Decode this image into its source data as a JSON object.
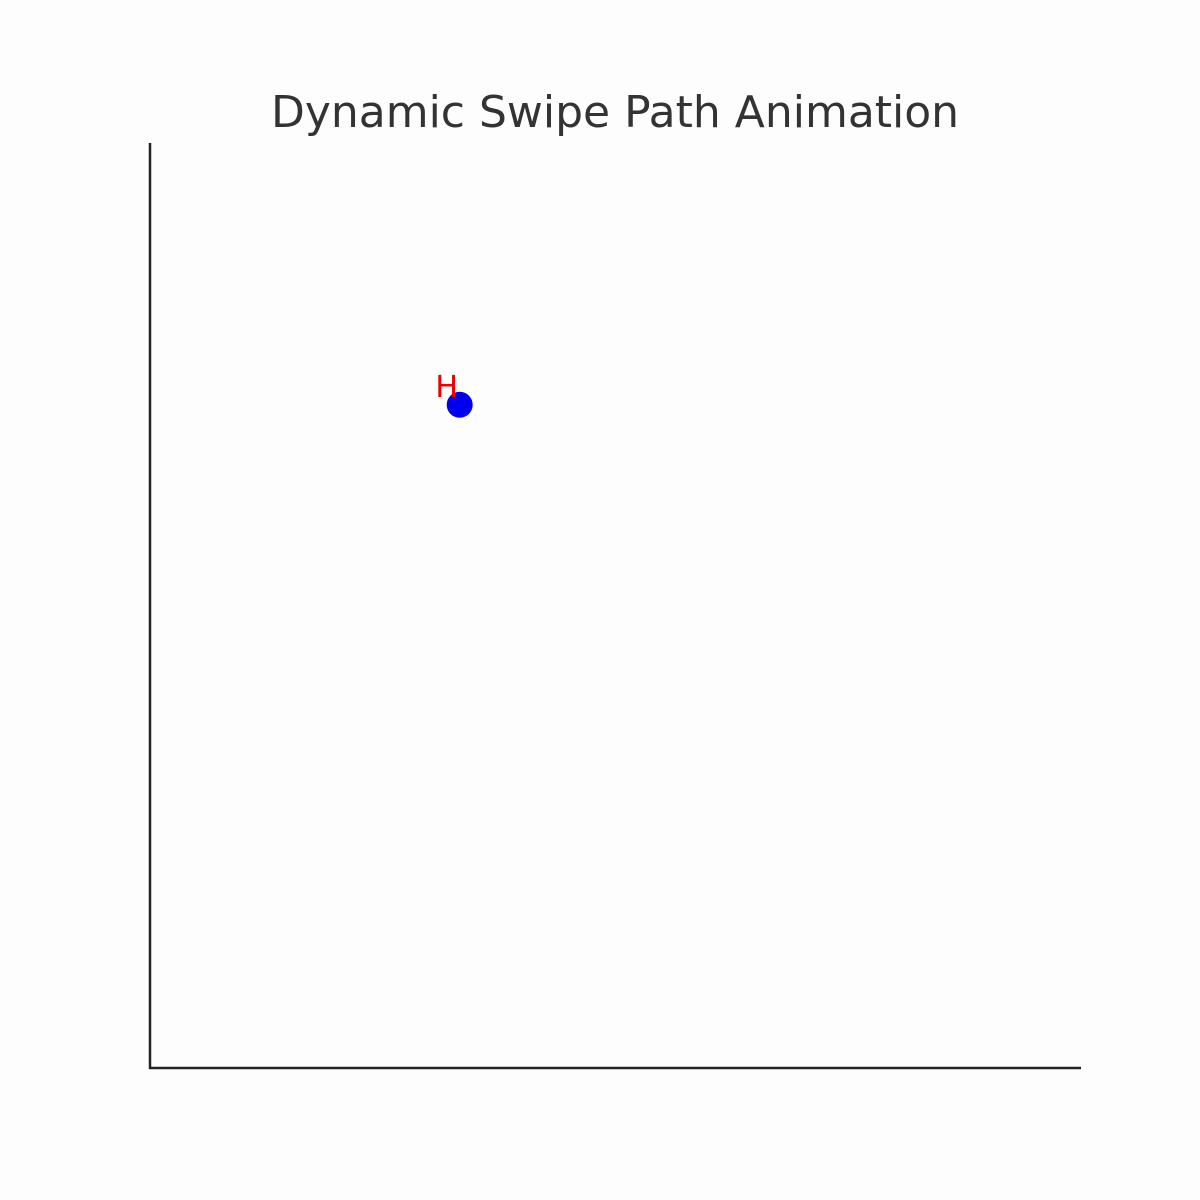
{
  "chart_data": {
    "type": "scatter",
    "title": "Dynamic Swipe Path Animation",
    "xlabel": "",
    "ylabel": "",
    "xlim": [
      0,
      10
    ],
    "ylim": [
      0,
      10
    ],
    "grid": false,
    "axes_visible": [
      "left",
      "bottom"
    ],
    "series": [
      {
        "points": [
          {
            "x": 3.33,
            "y": 7.17,
            "label": "H"
          }
        ]
      }
    ]
  },
  "colors": {
    "background": "#fdfdfd",
    "axis": "#222222",
    "title": "#333333",
    "point": "#0000ee",
    "label": "#ee0000"
  }
}
